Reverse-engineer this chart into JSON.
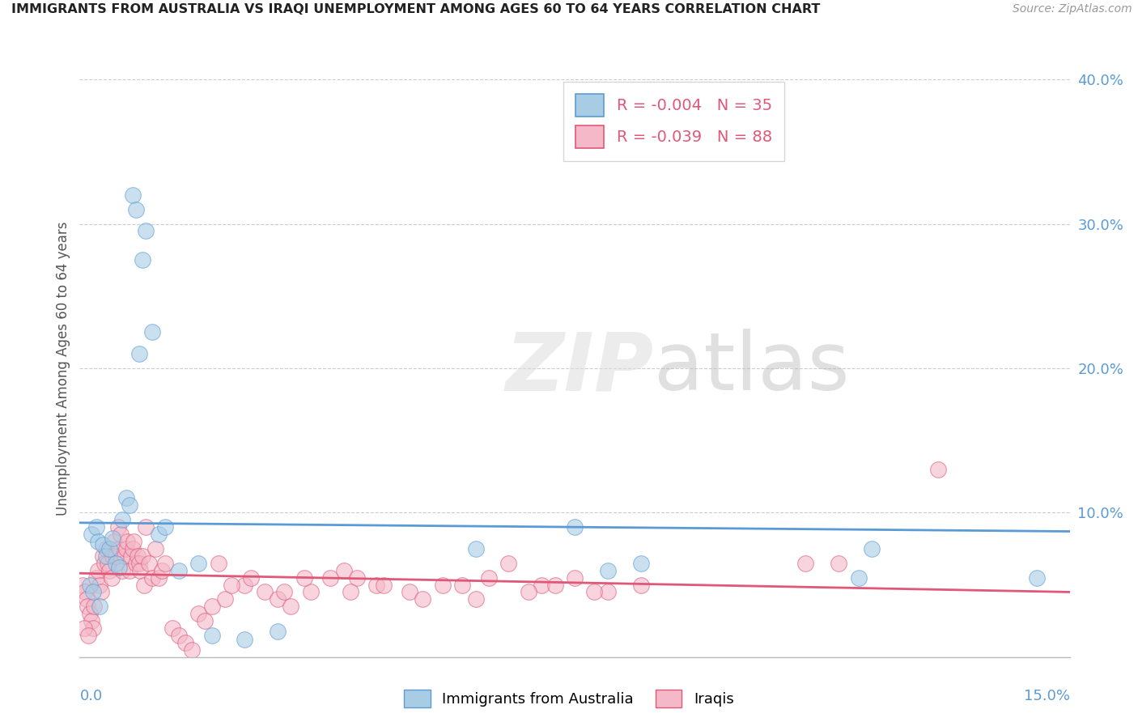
{
  "title": "IMMIGRANTS FROM AUSTRALIA VS IRAQI UNEMPLOYMENT AMONG AGES 60 TO 64 YEARS CORRELATION CHART",
  "source": "Source: ZipAtlas.com",
  "ylabel": "Unemployment Among Ages 60 to 64 years",
  "xlim": [
    0.0,
    15.0
  ],
  "ylim": [
    0.0,
    40.0
  ],
  "yticks": [
    0.0,
    10.0,
    20.0,
    30.0,
    40.0
  ],
  "ytick_labels": [
    "",
    "10.0%",
    "20.0%",
    "30.0%",
    "40.0%"
  ],
  "legend_r1": "R = -0.004",
  "legend_n1": "N = 35",
  "legend_r2": "R = -0.039",
  "legend_n2": "N = 88",
  "color_blue": "#a8cce4",
  "color_pink": "#f4b8c8",
  "color_blue_dark": "#5b9bd5",
  "color_pink_dark": "#e05878",
  "color_r_text": "#e05878",
  "color_n_text": "#5b9bd5",
  "watermark_zip": "ZIP",
  "watermark_atlas": "atlas",
  "blue_scatter_x": [
    0.18,
    0.25,
    0.28,
    0.35,
    0.4,
    0.45,
    0.5,
    0.55,
    0.6,
    0.65,
    0.7,
    0.75,
    0.8,
    0.85,
    0.9,
    0.95,
    1.0,
    1.1,
    1.2,
    1.3,
    1.5,
    1.8,
    2.0,
    2.5,
    3.0,
    6.0,
    7.5,
    8.0,
    8.5,
    12.0,
    11.8,
    0.15,
    0.2,
    0.3,
    14.5
  ],
  "blue_scatter_y": [
    8.5,
    9.0,
    8.0,
    7.8,
    7.0,
    7.5,
    8.2,
    6.5,
    6.2,
    9.5,
    11.0,
    10.5,
    32.0,
    31.0,
    21.0,
    27.5,
    29.5,
    22.5,
    8.5,
    9.0,
    6.0,
    6.5,
    1.5,
    1.2,
    1.8,
    7.5,
    9.0,
    6.0,
    6.5,
    7.5,
    5.5,
    5.0,
    4.5,
    3.5,
    5.5
  ],
  "pink_scatter_x": [
    0.05,
    0.08,
    0.1,
    0.12,
    0.15,
    0.18,
    0.2,
    0.22,
    0.25,
    0.28,
    0.3,
    0.32,
    0.35,
    0.38,
    0.4,
    0.42,
    0.45,
    0.48,
    0.5,
    0.52,
    0.55,
    0.58,
    0.6,
    0.62,
    0.65,
    0.68,
    0.7,
    0.72,
    0.75,
    0.78,
    0.8,
    0.82,
    0.85,
    0.88,
    0.9,
    0.92,
    0.95,
    0.98,
    1.0,
    1.05,
    1.1,
    1.15,
    1.2,
    1.25,
    1.3,
    1.4,
    1.5,
    1.6,
    1.7,
    1.8,
    1.9,
    2.0,
    2.2,
    2.5,
    2.8,
    3.0,
    3.2,
    3.5,
    3.8,
    4.0,
    4.2,
    4.5,
    5.0,
    5.5,
    6.0,
    6.5,
    7.0,
    7.5,
    8.0,
    8.5,
    2.1,
    2.3,
    2.6,
    3.1,
    3.4,
    4.1,
    4.6,
    5.2,
    5.8,
    6.2,
    6.8,
    7.2,
    7.8,
    11.0,
    13.0,
    11.5,
    0.07,
    0.13
  ],
  "pink_scatter_y": [
    5.0,
    4.5,
    4.0,
    3.5,
    3.0,
    2.5,
    2.0,
    3.5,
    5.5,
    6.0,
    5.0,
    4.5,
    7.0,
    6.5,
    7.5,
    6.5,
    6.0,
    5.5,
    7.0,
    8.0,
    7.0,
    9.0,
    7.5,
    8.5,
    6.0,
    7.0,
    7.5,
    8.0,
    6.0,
    7.0,
    7.5,
    8.0,
    6.5,
    7.0,
    6.5,
    6.0,
    7.0,
    5.0,
    9.0,
    6.5,
    5.5,
    7.5,
    5.5,
    6.0,
    6.5,
    2.0,
    1.5,
    1.0,
    0.5,
    3.0,
    2.5,
    3.5,
    4.0,
    5.0,
    4.5,
    4.0,
    3.5,
    4.5,
    5.5,
    6.0,
    5.5,
    5.0,
    4.5,
    5.0,
    4.0,
    6.5,
    5.0,
    5.5,
    4.5,
    5.0,
    6.5,
    5.0,
    5.5,
    4.5,
    5.5,
    4.5,
    5.0,
    4.0,
    5.0,
    5.5,
    4.5,
    5.0,
    4.5,
    6.5,
    13.0,
    6.5,
    2.0,
    1.5
  ],
  "blue_line_x": [
    0.0,
    15.0
  ],
  "blue_line_y": [
    9.3,
    8.7
  ],
  "pink_line_x": [
    0.0,
    15.0
  ],
  "pink_line_y": [
    5.8,
    4.5
  ],
  "legend_label1": "Immigrants from Australia",
  "legend_label2": "Iraqis"
}
